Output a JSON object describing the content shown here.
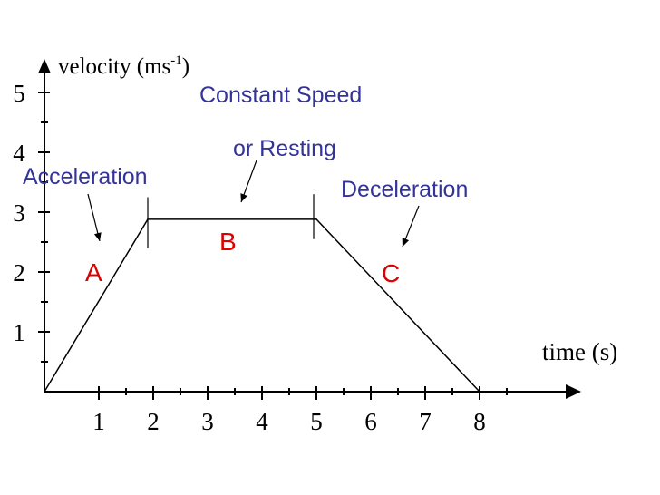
{
  "chart_data": {
    "type": "line",
    "title": "",
    "ylabel": "velocity (ms",
    "ylabel_sup": "-1",
    "ylabel_close": ")",
    "xlabel": "time (s)",
    "xlim": [
      0,
      9.5
    ],
    "ylim": [
      0,
      5.3
    ],
    "x_ticks": [
      1,
      2,
      3,
      4,
      5,
      6,
      7,
      8
    ],
    "x_tick_labels": [
      "1",
      "2",
      "3",
      "4",
      "5",
      "6",
      "7",
      "8"
    ],
    "x_minor_ticks": [
      1.5,
      2.5,
      3.5,
      4.5,
      5.5,
      6.5,
      7.5,
      8.5
    ],
    "y_ticks": [
      1,
      2,
      3,
      4,
      5
    ],
    "y_tick_labels": [
      "1",
      "2",
      "3",
      "4",
      "5"
    ],
    "y_minor_ticks": [
      0.5,
      1.5,
      2.5,
      3.5,
      4.5
    ],
    "grid": false,
    "series": [
      {
        "x": [
          0,
          1.9,
          5,
          8
        ],
        "y": [
          0,
          2.88,
          2.88,
          0
        ],
        "color": "#000000"
      }
    ],
    "phase_markers": [
      {
        "x": 1.9,
        "y_from": 2.4,
        "y_to": 3.25
      },
      {
        "x": 4.95,
        "y_from": 2.55,
        "y_to": 3.3
      }
    ],
    "annotations": [
      {
        "text": "Constant Speed",
        "color": "#333399"
      },
      {
        "text": "or Resting",
        "color": "#333399"
      },
      {
        "text": "Acceleration",
        "color": "#333399"
      },
      {
        "text": "Deceleration",
        "color": "#333399"
      },
      {
        "text": "A",
        "color": "#dd0000"
      },
      {
        "text": "B",
        "color": "#dd0000"
      },
      {
        "text": "C",
        "color": "#dd0000"
      }
    ]
  }
}
